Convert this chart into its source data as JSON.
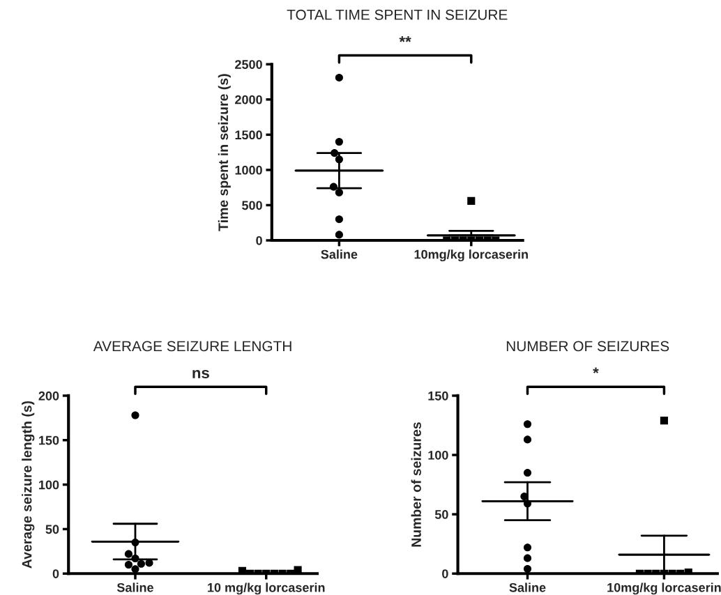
{
  "chart_data": [
    {
      "type": "scatter",
      "title": "TOTAL TIME SPENT IN SEIZURE",
      "ylabel": "Time spent in seizure (s)",
      "categories": [
        "Saline",
        "10mg/kg lorcaserin"
      ],
      "ylim": [
        0,
        2500
      ],
      "yticks": [
        0,
        500,
        1000,
        1500,
        2000,
        2500
      ],
      "annotations": [
        "**"
      ],
      "series": [
        {
          "color": "#000000",
          "marker": "circle",
          "x": [
            "Saline",
            "Saline",
            "Saline",
            "Saline",
            "Saline",
            "Saline",
            "Saline",
            "Saline"
          ],
          "values": [
            2310,
            1400,
            1240,
            1150,
            760,
            680,
            300,
            80
          ]
        },
        {
          "color": "#000000",
          "marker": "square",
          "x": [
            "10mg/kg lorcaserin",
            "10mg/kg lorcaserin",
            "10mg/kg lorcaserin",
            "10mg/kg lorcaserin",
            "10mg/kg lorcaserin",
            "10mg/kg lorcaserin",
            "10mg/kg lorcaserin",
            "10mg/kg lorcaserin"
          ],
          "values": [
            560,
            0,
            0,
            0,
            0,
            0,
            0,
            0
          ]
        },
        {
          "type": "box",
          "color": "#000000",
          "boxes": [
            {
              "low": 740,
              "q1": 990,
              "median": 990,
              "q3": 990,
              "high": 1240
            },
            {
              "low": 70,
              "q1": 70,
              "median": 70,
              "q3": 70,
              "high": 135
            }
          ]
        }
      ]
    },
    {
      "type": "scatter",
      "title": "AVERAGE SEIZURE LENGTH",
      "ylabel": "Average seizure length (s)",
      "categories": [
        "Saline",
        "10 mg/kg lorcaserin"
      ],
      "ylim": [
        0,
        200
      ],
      "yticks": [
        0,
        50,
        100,
        150,
        200
      ],
      "annotations": [
        "ns"
      ],
      "series": [
        {
          "color": "#000000",
          "marker": "circle",
          "x": [
            "Saline",
            "Saline",
            "Saline",
            "Saline",
            "Saline",
            "Saline",
            "Saline",
            "Saline"
          ],
          "values": [
            178,
            35,
            22,
            17,
            12,
            11,
            10,
            5
          ]
        },
        {
          "color": "#000000",
          "marker": "square",
          "x": [
            "10 mg/kg lorcaserin",
            "10 mg/kg lorcaserin",
            "10 mg/kg lorcaserin",
            "10 mg/kg lorcaserin",
            "10 mg/kg lorcaserin",
            "10 mg/kg lorcaserin",
            "10 mg/kg lorcaserin",
            "10 mg/kg lorcaserin"
          ],
          "values": [
            3,
            0,
            0,
            0,
            0,
            0,
            0,
            4
          ]
        },
        {
          "type": "box",
          "color": "#000000",
          "boxes": [
            {
              "low": 16,
              "q1": 36,
              "median": 36,
              "q3": 36,
              "high": 56
            },
            null
          ]
        }
      ]
    },
    {
      "type": "scatter",
      "title": "NUMBER OF SEIZURES",
      "ylabel": "Number of seizures",
      "categories": [
        "Saline",
        "10mg/kg lorcaserin"
      ],
      "ylim": [
        0,
        150
      ],
      "yticks": [
        0,
        50,
        100,
        150
      ],
      "annotations": [
        "*"
      ],
      "series": [
        {
          "color": "#000000",
          "marker": "circle",
          "x": [
            "Saline",
            "Saline",
            "Saline",
            "Saline",
            "Saline",
            "Saline",
            "Saline",
            "Saline"
          ],
          "values": [
            126,
            113,
            85,
            65,
            59,
            22,
            13,
            4
          ]
        },
        {
          "color": "#000000",
          "marker": "square",
          "x": [
            "10mg/kg lorcaserin",
            "10mg/kg lorcaserin",
            "10mg/kg lorcaserin",
            "10mg/kg lorcaserin",
            "10mg/kg lorcaserin",
            "10mg/kg lorcaserin",
            "10mg/kg lorcaserin",
            "10mg/kg lorcaserin"
          ],
          "values": [
            129,
            1,
            0,
            0,
            0,
            0,
            0,
            0
          ]
        },
        {
          "type": "box",
          "color": "#000000",
          "boxes": [
            {
              "low": 45,
              "q1": 61,
              "median": 61,
              "q3": 61,
              "high": 77
            },
            {
              "low": 0,
              "q1": 16,
              "median": 16,
              "q3": 16,
              "high": 32
            }
          ]
        }
      ]
    }
  ]
}
